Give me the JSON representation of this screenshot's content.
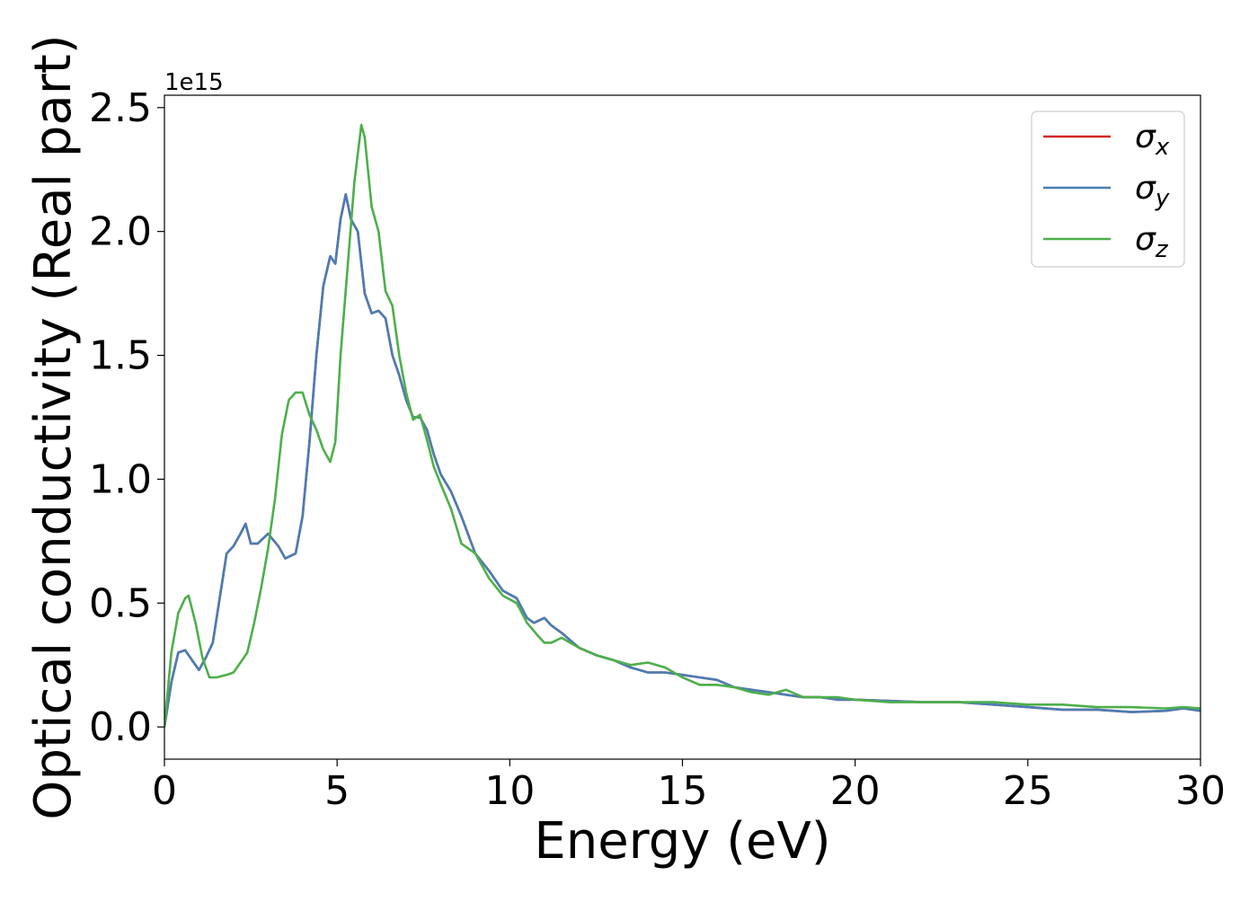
{
  "chart_data": {
    "type": "line",
    "xlabel": "Energy (eV)",
    "ylabel": "Optical conductivity (Real part)",
    "y_offset_label": "1e15",
    "xlim": [
      0,
      30
    ],
    "ylim": [
      -0.13,
      2.55
    ],
    "x_ticks": [
      0,
      5,
      10,
      15,
      20,
      25,
      30
    ],
    "y_ticks": [
      0.0,
      0.5,
      1.0,
      1.5,
      2.0,
      2.5
    ],
    "x_tick_labels": [
      "0",
      "5",
      "10",
      "15",
      "20",
      "25",
      "30"
    ],
    "y_tick_labels": [
      "0.0",
      "0.5",
      "1.0",
      "1.5",
      "2.0",
      "2.5"
    ],
    "grid": false,
    "legend_position": "top-right",
    "series": [
      {
        "name": "σ_x",
        "legend_symbol": "σ",
        "legend_sub": "x",
        "color": "#d62728",
        "x": [
          0,
          0.2,
          0.4,
          0.6,
          0.8,
          1.0,
          1.2,
          1.4,
          1.6,
          1.8,
          2.0,
          2.2,
          2.35,
          2.5,
          2.7,
          3.0,
          3.3,
          3.5,
          3.8,
          4.0,
          4.2,
          4.4,
          4.6,
          4.8,
          4.95,
          5.1,
          5.25,
          5.4,
          5.6,
          5.8,
          6.0,
          6.2,
          6.4,
          6.6,
          6.8,
          7.0,
          7.2,
          7.4,
          7.6,
          7.8,
          8.0,
          8.3,
          8.6,
          9.0,
          9.4,
          9.8,
          10.2,
          10.5,
          10.7,
          11.0,
          11.2,
          11.5,
          12.0,
          12.5,
          13.0,
          13.5,
          14.0,
          14.5,
          15.0,
          15.5,
          16.0,
          16.5,
          17.0,
          17.5,
          18.0,
          18.5,
          19.0,
          19.5,
          20.0,
          21.0,
          22.0,
          23.0,
          24.0,
          25.0,
          26.0,
          27.0,
          28.0,
          29.0,
          29.5,
          30.0
        ],
        "values": [
          0.0,
          0.18,
          0.3,
          0.31,
          0.27,
          0.23,
          0.28,
          0.34,
          0.52,
          0.7,
          0.73,
          0.78,
          0.82,
          0.74,
          0.74,
          0.78,
          0.73,
          0.68,
          0.7,
          0.85,
          1.15,
          1.5,
          1.78,
          1.9,
          1.87,
          2.05,
          2.15,
          2.05,
          2.0,
          1.75,
          1.67,
          1.68,
          1.65,
          1.5,
          1.42,
          1.32,
          1.25,
          1.25,
          1.2,
          1.1,
          1.02,
          0.95,
          0.85,
          0.7,
          0.63,
          0.55,
          0.52,
          0.44,
          0.42,
          0.44,
          0.41,
          0.38,
          0.32,
          0.29,
          0.27,
          0.24,
          0.22,
          0.22,
          0.21,
          0.2,
          0.19,
          0.16,
          0.15,
          0.14,
          0.13,
          0.12,
          0.12,
          0.11,
          0.11,
          0.105,
          0.1,
          0.1,
          0.09,
          0.08,
          0.07,
          0.07,
          0.06,
          0.065,
          0.075,
          0.065
        ]
      },
      {
        "name": "σ_y",
        "legend_symbol": "σ",
        "legend_sub": "y",
        "color": "#4a7db4",
        "x": [
          0,
          0.2,
          0.4,
          0.6,
          0.8,
          1.0,
          1.2,
          1.4,
          1.6,
          1.8,
          2.0,
          2.2,
          2.35,
          2.5,
          2.7,
          3.0,
          3.3,
          3.5,
          3.8,
          4.0,
          4.2,
          4.4,
          4.6,
          4.8,
          4.95,
          5.1,
          5.25,
          5.4,
          5.6,
          5.8,
          6.0,
          6.2,
          6.4,
          6.6,
          6.8,
          7.0,
          7.2,
          7.4,
          7.6,
          7.8,
          8.0,
          8.3,
          8.6,
          9.0,
          9.4,
          9.8,
          10.2,
          10.5,
          10.7,
          11.0,
          11.2,
          11.5,
          12.0,
          12.5,
          13.0,
          13.5,
          14.0,
          14.5,
          15.0,
          15.5,
          16.0,
          16.5,
          17.0,
          17.5,
          18.0,
          18.5,
          19.0,
          19.5,
          20.0,
          21.0,
          22.0,
          23.0,
          24.0,
          25.0,
          26.0,
          27.0,
          28.0,
          29.0,
          29.5,
          30.0
        ],
        "values": [
          0.0,
          0.18,
          0.3,
          0.31,
          0.27,
          0.23,
          0.28,
          0.34,
          0.52,
          0.7,
          0.73,
          0.78,
          0.82,
          0.74,
          0.74,
          0.78,
          0.73,
          0.68,
          0.7,
          0.85,
          1.15,
          1.5,
          1.78,
          1.9,
          1.87,
          2.05,
          2.15,
          2.05,
          2.0,
          1.75,
          1.67,
          1.68,
          1.65,
          1.5,
          1.42,
          1.32,
          1.25,
          1.25,
          1.2,
          1.1,
          1.02,
          0.95,
          0.85,
          0.7,
          0.63,
          0.55,
          0.52,
          0.44,
          0.42,
          0.44,
          0.41,
          0.38,
          0.32,
          0.29,
          0.27,
          0.24,
          0.22,
          0.22,
          0.21,
          0.2,
          0.19,
          0.16,
          0.15,
          0.14,
          0.13,
          0.12,
          0.12,
          0.11,
          0.11,
          0.105,
          0.1,
          0.1,
          0.09,
          0.08,
          0.07,
          0.07,
          0.06,
          0.065,
          0.075,
          0.065
        ]
      },
      {
        "name": "σ_z",
        "legend_symbol": "σ",
        "legend_sub": "z",
        "color": "#4daf4a",
        "x": [
          0,
          0.2,
          0.4,
          0.6,
          0.7,
          0.9,
          1.1,
          1.3,
          1.5,
          1.8,
          2.0,
          2.2,
          2.4,
          2.6,
          2.8,
          3.0,
          3.2,
          3.4,
          3.6,
          3.8,
          4.0,
          4.2,
          4.4,
          4.6,
          4.8,
          4.95,
          5.1,
          5.3,
          5.5,
          5.7,
          5.8,
          6.0,
          6.2,
          6.4,
          6.6,
          6.8,
          7.0,
          7.2,
          7.4,
          7.6,
          7.8,
          8.0,
          8.3,
          8.6,
          9.0,
          9.4,
          9.8,
          10.2,
          10.5,
          10.8,
          11.0,
          11.2,
          11.5,
          12.0,
          12.5,
          13.0,
          13.5,
          14.0,
          14.5,
          15.0,
          15.5,
          16.0,
          16.5,
          17.0,
          17.5,
          18.0,
          18.5,
          19.0,
          19.5,
          20.0,
          21.0,
          22.0,
          23.0,
          24.0,
          25.0,
          26.0,
          27.0,
          28.0,
          29.0,
          29.5,
          30.0
        ],
        "values": [
          0.0,
          0.3,
          0.46,
          0.52,
          0.53,
          0.42,
          0.28,
          0.2,
          0.2,
          0.21,
          0.22,
          0.26,
          0.3,
          0.42,
          0.56,
          0.72,
          0.92,
          1.18,
          1.32,
          1.35,
          1.35,
          1.26,
          1.2,
          1.12,
          1.07,
          1.15,
          1.5,
          1.85,
          2.2,
          2.43,
          2.38,
          2.1,
          2.0,
          1.76,
          1.7,
          1.5,
          1.35,
          1.24,
          1.26,
          1.16,
          1.05,
          0.98,
          0.88,
          0.74,
          0.7,
          0.6,
          0.53,
          0.5,
          0.42,
          0.37,
          0.34,
          0.34,
          0.36,
          0.32,
          0.29,
          0.27,
          0.25,
          0.26,
          0.24,
          0.2,
          0.17,
          0.17,
          0.16,
          0.14,
          0.13,
          0.15,
          0.12,
          0.12,
          0.12,
          0.11,
          0.1,
          0.1,
          0.1,
          0.1,
          0.09,
          0.09,
          0.08,
          0.08,
          0.075,
          0.08,
          0.075
        ]
      }
    ]
  }
}
